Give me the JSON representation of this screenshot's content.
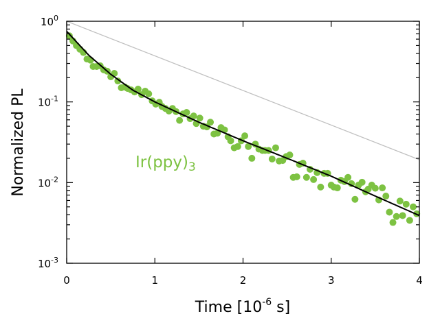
{
  "chart_data": {
    "type": "scatter",
    "title": "",
    "xlabel": {
      "prefix": "Time [10",
      "exp": "-6",
      "suffix": " s]"
    },
    "ylabel": "Normalized PL",
    "xlim": [
      0,
      4
    ],
    "ylim": [
      0.001,
      1
    ],
    "yscale": "log",
    "grid": false,
    "x_ticks": [
      "0",
      "1",
      "2",
      "3",
      "4"
    ],
    "y_ticks": [
      {
        "value": 1,
        "base": "10",
        "exp": "0"
      },
      {
        "value": 0.1,
        "base": "10",
        "exp": "-1"
      },
      {
        "value": 0.01,
        "base": "10",
        "exp": "-2"
      },
      {
        "value": 0.001,
        "base": "10",
        "exp": "-3"
      }
    ],
    "annotation": {
      "text": "Ir(ppy)",
      "subscript": "3",
      "color": "#7dc242"
    },
    "colors": {
      "points": "#7dc242",
      "fit": "#000000",
      "reference": "#c0c0c0"
    },
    "series": [
      {
        "type": "scatter",
        "x": [
          0.03,
          0.07,
          0.11,
          0.15,
          0.19,
          0.23,
          0.27,
          0.3,
          0.34,
          0.38,
          0.42,
          0.46,
          0.5,
          0.54,
          0.58,
          0.62,
          0.66,
          0.69,
          0.73,
          0.77,
          0.81,
          0.85,
          0.89,
          0.93,
          0.97,
          1.01,
          1.05,
          1.08,
          1.12,
          1.16,
          1.2,
          1.24,
          1.28,
          1.32,
          1.36,
          1.4,
          1.44,
          1.47,
          1.51,
          1.55,
          1.59,
          1.63,
          1.67,
          1.71,
          1.75,
          1.79,
          1.83,
          1.86,
          1.9,
          1.94,
          1.98,
          2.02,
          2.06,
          2.1,
          2.14,
          2.18,
          2.22,
          2.25,
          2.29,
          2.33,
          2.37,
          2.41,
          2.45,
          2.49,
          2.53,
          2.57,
          2.61,
          2.64,
          2.68,
          2.72,
          2.76,
          2.8,
          2.84,
          2.88,
          2.92,
          2.96,
          3.0,
          3.03,
          3.07,
          3.11,
          3.15,
          3.19,
          3.23,
          3.27,
          3.31,
          3.35,
          3.39,
          3.42,
          3.46,
          3.5,
          3.54,
          3.58,
          3.62,
          3.66,
          3.7,
          3.74,
          3.78,
          3.81,
          3.85,
          3.89,
          3.93,
          3.97
        ],
        "y": [
          0.66,
          0.57,
          0.5,
          0.45,
          0.41,
          0.34,
          0.33,
          0.275,
          0.275,
          0.28,
          0.25,
          0.24,
          0.205,
          0.226,
          0.182,
          0.15,
          0.153,
          0.147,
          0.141,
          0.133,
          0.144,
          0.123,
          0.136,
          0.126,
          0.103,
          0.094,
          0.099,
          0.088,
          0.083,
          0.077,
          0.083,
          0.076,
          0.059,
          0.071,
          0.074,
          0.062,
          0.067,
          0.054,
          0.063,
          0.05,
          0.049,
          0.056,
          0.04,
          0.041,
          0.048,
          0.045,
          0.037,
          0.033,
          0.027,
          0.028,
          0.033,
          0.038,
          0.028,
          0.02,
          0.03,
          0.026,
          0.025,
          0.025,
          0.025,
          0.0196,
          0.027,
          0.0185,
          0.0188,
          0.021,
          0.022,
          0.0116,
          0.0118,
          0.0168,
          0.0174,
          0.0116,
          0.0146,
          0.0109,
          0.0133,
          0.0088,
          0.013,
          0.013,
          0.0093,
          0.0088,
          0.0086,
          0.0107,
          0.0103,
          0.0116,
          0.0097,
          0.0062,
          0.0093,
          0.0101,
          0.0077,
          0.0083,
          0.0093,
          0.0085,
          0.0061,
          0.0086,
          0.0068,
          0.0043,
          0.0032,
          0.0038,
          0.0059,
          0.0039,
          0.0054,
          0.0034,
          0.005,
          0.0041
        ]
      },
      {
        "type": "line",
        "x": [
          0,
          0.25,
          0.5,
          0.75,
          1,
          1.5,
          2,
          2.5,
          3,
          3.5,
          4
        ],
        "y": [
          0.75,
          0.38,
          0.22,
          0.14,
          0.1,
          0.056,
          0.033,
          0.02,
          0.012,
          0.0068,
          0.0039
        ]
      },
      {
        "type": "line",
        "x": [
          0,
          4
        ],
        "y": [
          1,
          0.0192
        ]
      }
    ]
  }
}
